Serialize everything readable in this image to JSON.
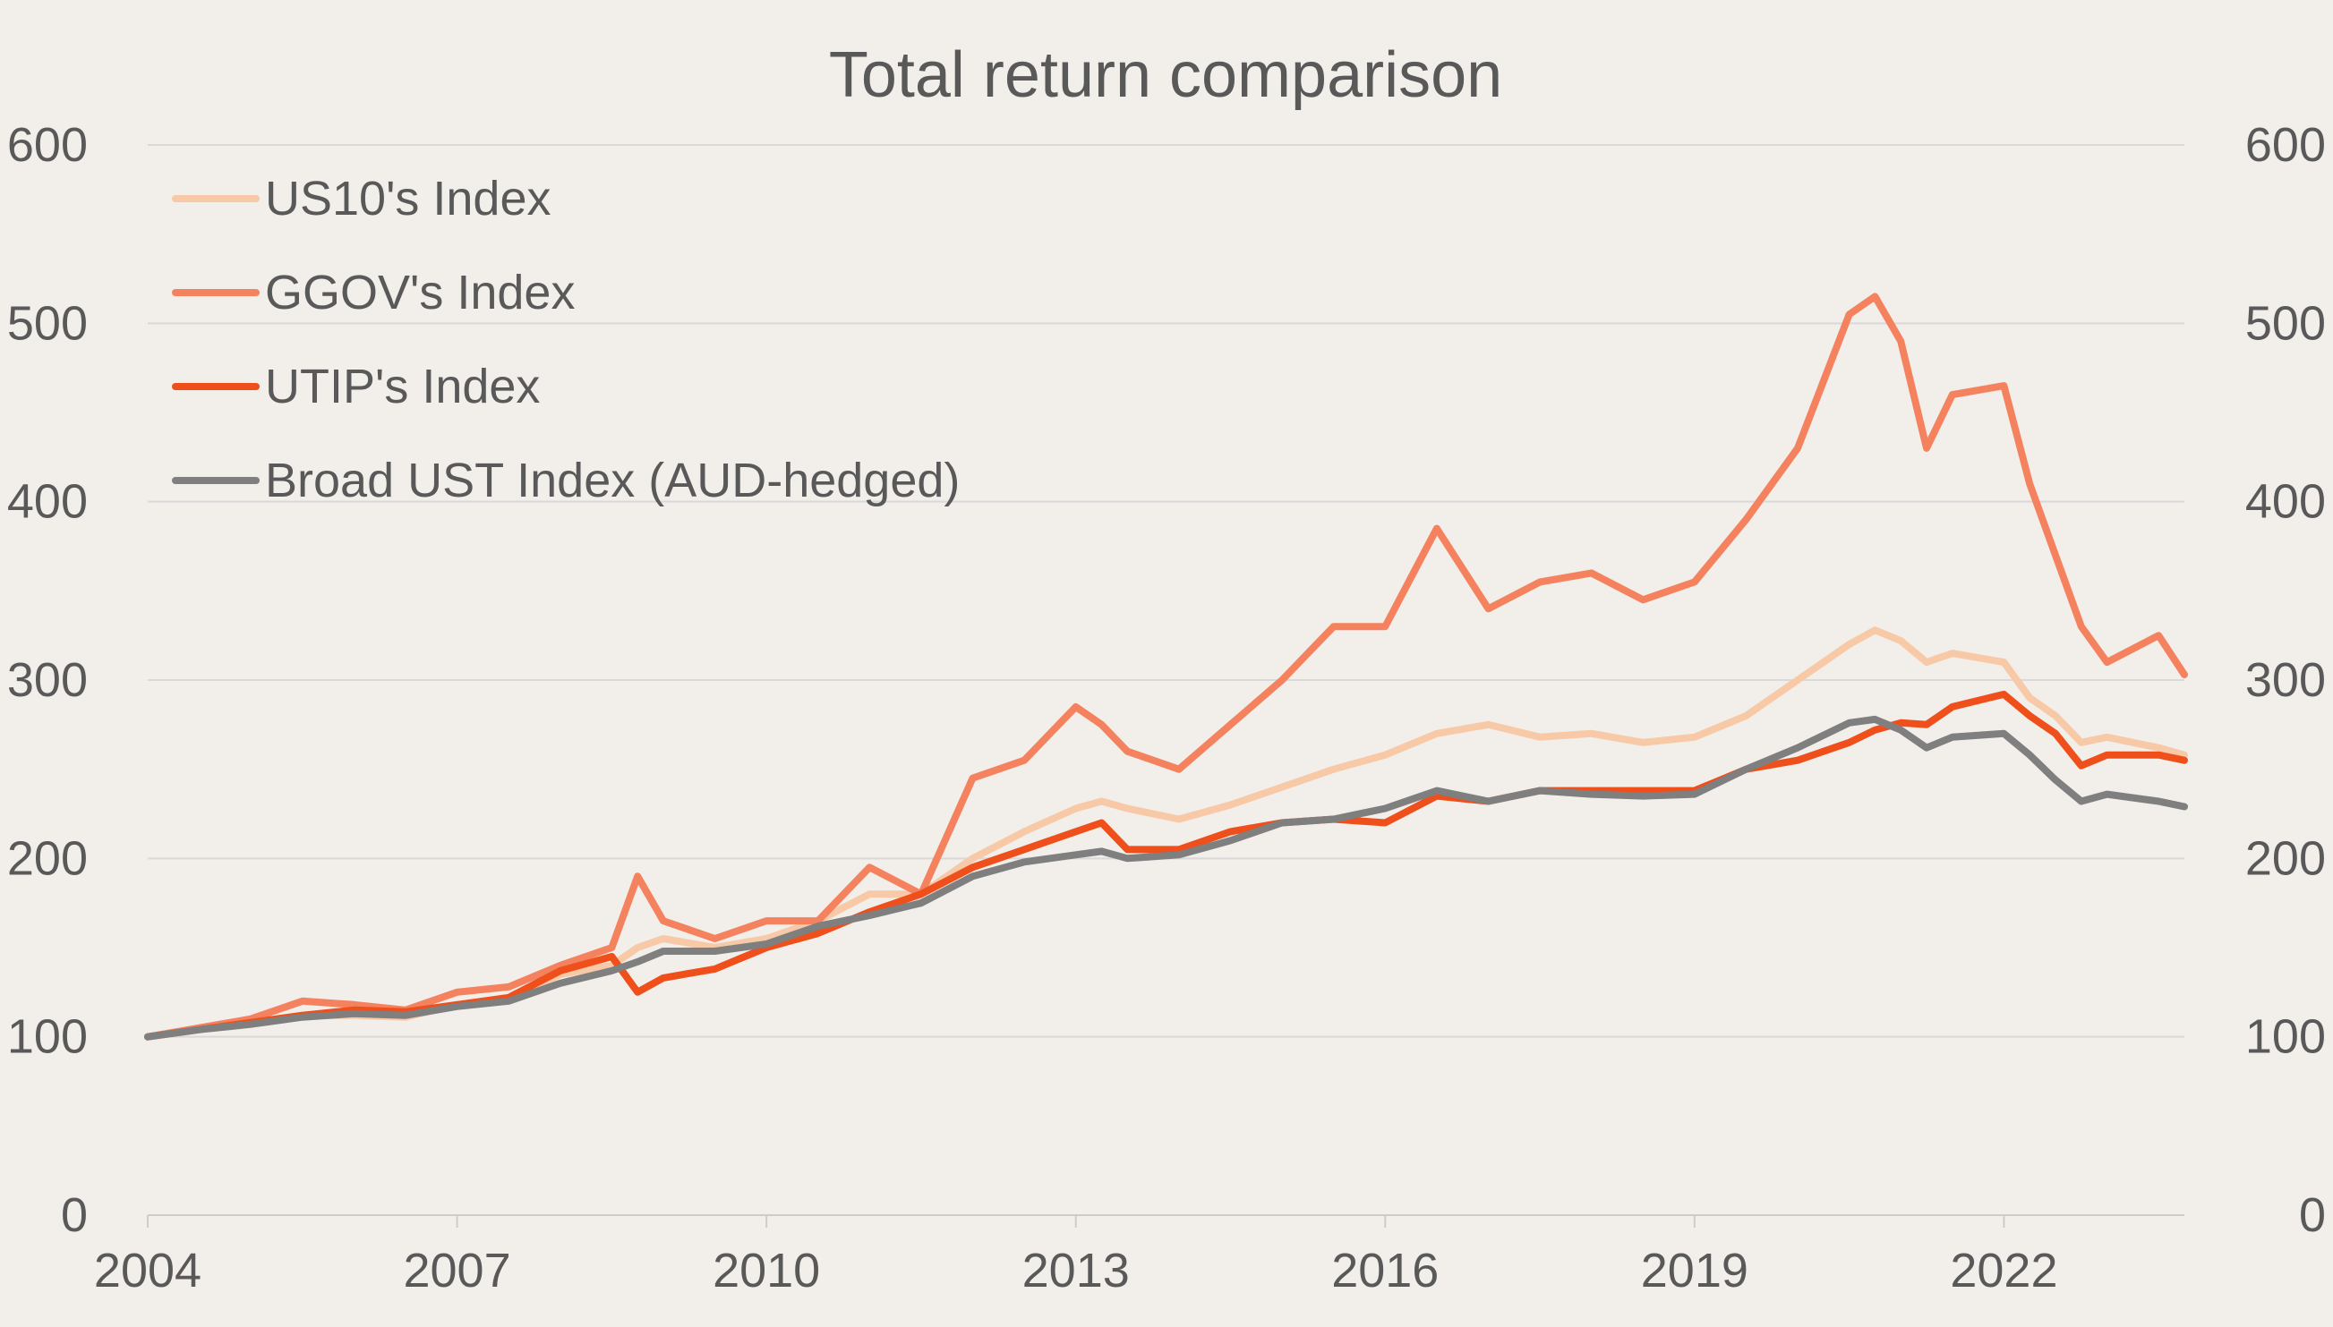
{
  "chart_data": {
    "type": "line",
    "title": "Total return comparison",
    "xlabel": "",
    "ylabel": "",
    "x_ticks": [
      "2004",
      "2007",
      "2010",
      "2013",
      "2016",
      "2019",
      "2022"
    ],
    "y_ticks": [
      "0",
      "100",
      "200",
      "300",
      "400",
      "500",
      "600"
    ],
    "xlim": [
      2004.0,
      2023.75
    ],
    "ylim": [
      0,
      600
    ],
    "secondary_y_axis": true,
    "grid": true,
    "legend_position": "top-left",
    "x": [
      2004.0,
      2004.5,
      2005.0,
      2005.5,
      2006.0,
      2006.5,
      2007.0,
      2007.5,
      2008.0,
      2008.5,
      2008.75,
      2009.0,
      2009.5,
      2010.0,
      2010.5,
      2011.0,
      2011.5,
      2012.0,
      2012.5,
      2013.0,
      2013.25,
      2013.5,
      2014.0,
      2014.5,
      2015.0,
      2015.5,
      2016.0,
      2016.5,
      2017.0,
      2017.5,
      2018.0,
      2018.5,
      2019.0,
      2019.5,
      2020.0,
      2020.5,
      2020.75,
      2021.0,
      2021.25,
      2021.5,
      2022.0,
      2022.25,
      2022.5,
      2022.75,
      2023.0,
      2023.5,
      2023.75
    ],
    "series": [
      {
        "name": "US10's Index",
        "color": "#f8c9a6",
        "values": [
          100,
          104,
          108,
          112,
          112,
          111,
          118,
          120,
          135,
          140,
          150,
          155,
          150,
          155,
          165,
          180,
          180,
          200,
          215,
          228,
          232,
          228,
          222,
          230,
          240,
          250,
          258,
          270,
          275,
          268,
          270,
          265,
          268,
          280,
          300,
          320,
          328,
          322,
          310,
          315,
          310,
          290,
          280,
          265,
          268,
          262,
          258
        ]
      },
      {
        "name": "GGOV's Index",
        "color": "#f4825f",
        "values": [
          100,
          105,
          110,
          120,
          118,
          115,
          125,
          128,
          140,
          150,
          190,
          165,
          155,
          165,
          165,
          195,
          180,
          245,
          255,
          285,
          275,
          260,
          250,
          275,
          300,
          330,
          330,
          385,
          340,
          355,
          360,
          345,
          355,
          390,
          430,
          505,
          515,
          490,
          430,
          460,
          465,
          410,
          370,
          330,
          310,
          325,
          303
        ]
      },
      {
        "name": "UTIP's Index",
        "color": "#ee4f1b",
        "values": [
          100,
          104,
          108,
          112,
          115,
          114,
          118,
          122,
          137,
          145,
          125,
          133,
          138,
          150,
          158,
          170,
          180,
          195,
          205,
          215,
          220,
          205,
          205,
          215,
          220,
          222,
          220,
          235,
          232,
          238,
          238,
          238,
          238,
          250,
          255,
          265,
          272,
          276,
          275,
          285,
          292,
          280,
          270,
          252,
          258,
          258,
          255
        ]
      },
      {
        "name": "Broad UST Index (AUD-hedged)",
        "color": "#7f7f7f",
        "values": [
          100,
          104,
          107,
          111,
          113,
          112,
          117,
          120,
          130,
          137,
          142,
          148,
          148,
          152,
          162,
          168,
          175,
          190,
          198,
          202,
          204,
          200,
          202,
          210,
          220,
          222,
          228,
          238,
          232,
          238,
          236,
          235,
          236,
          250,
          262,
          276,
          278,
          272,
          262,
          268,
          270,
          258,
          244,
          232,
          236,
          232,
          229
        ]
      }
    ]
  }
}
